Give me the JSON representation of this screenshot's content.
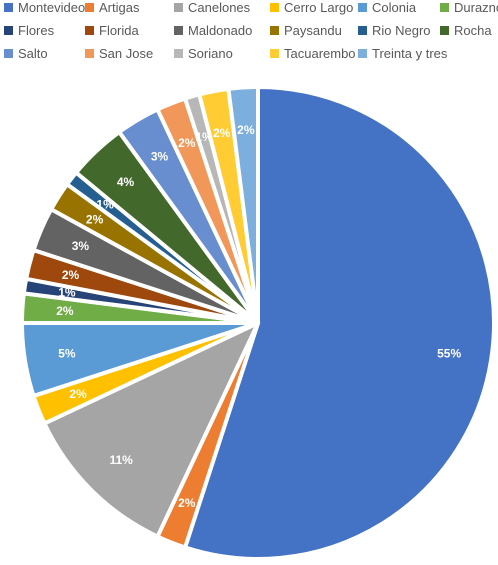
{
  "chart_data": {
    "type": "pie",
    "title": "",
    "legend_position": "top",
    "labels": [
      "Montevideo",
      "Artigas",
      "Canelones",
      "Cerro Largo",
      "Colonia",
      "Durazno",
      "Flores",
      "Florida",
      "Maldonado",
      "Paysandu",
      "Rio Negro",
      "Rocha",
      "Salto",
      "San Jose",
      "Soriano",
      "Tacuarembo",
      "Treinta y tres"
    ],
    "values": [
      55,
      2,
      11,
      2,
      5,
      2,
      1,
      2,
      3,
      2,
      1,
      4,
      3,
      2,
      1,
      2,
      2
    ],
    "value_labels": [
      "55%",
      "2%",
      "11%",
      "2%",
      "5%",
      "2%",
      "1%",
      "2%",
      "3%",
      "2%",
      "1%",
      "4%",
      "3%",
      "2%",
      "1%",
      "2%",
      "2%"
    ],
    "colors": [
      "#4472C4",
      "#ED7D31",
      "#A5A5A5",
      "#FFC000",
      "#5B9BD5",
      "#70AD47",
      "#264478",
      "#9E480E",
      "#636363",
      "#997300",
      "#255E91",
      "#43682B",
      "#698ED0",
      "#F1975A",
      "#B7B7B7",
      "#FFCD33",
      "#7CAFDD"
    ]
  }
}
